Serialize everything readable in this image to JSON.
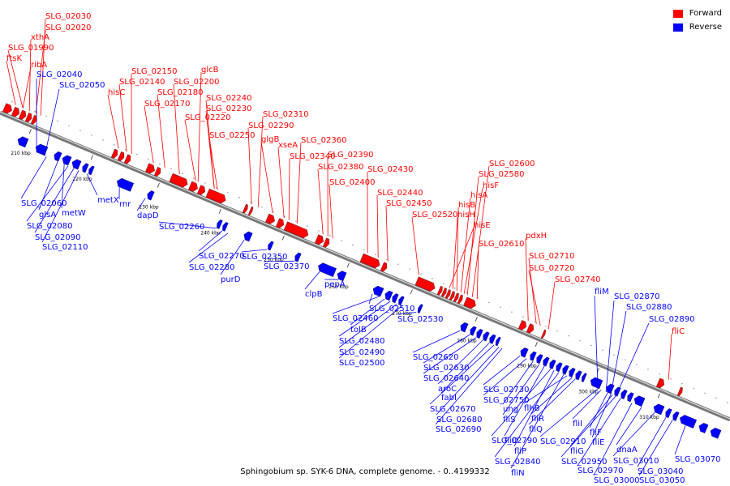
{
  "caption": "Sphingobium sp. SYK-6 DNA, complete genome. - 0..4199332",
  "legend": {
    "forward_label": "Forward",
    "reverse_label": "Reverse",
    "forward_color": "#ff0000",
    "reverse_color": "#0000ff"
  },
  "axis": {
    "line_color": "#888888",
    "ticks": [
      "210 kbp",
      "220 kbp",
      "230 kbp",
      "240 kbp",
      "250 kbp",
      "260 kbp",
      "270 kbp",
      "280 kbp",
      "290 kbp",
      "300 kbp",
      "310 kbp"
    ]
  },
  "forward_labels": [
    "SLG_02030",
    "SLG_02020",
    "xthA",
    "SLG_01990",
    "ftsK",
    "ribA",
    "SLG_02150",
    "SLG_02140",
    "hisC",
    "glcB",
    "SLG_02200",
    "SLG_02180",
    "SLG_02170",
    "SLG_02240",
    "SLG_02230",
    "SLG_02220",
    "SLG_02250",
    "SLG_02310",
    "SLG_02290",
    "glgB",
    "xseA",
    "SLG_02360",
    "SLG_02340",
    "SLG_02390",
    "SLG_02380",
    "SLG_02400",
    "SLG_02430",
    "SLG_02440",
    "SLG_02450",
    "SLG_02520",
    "SLG_02600",
    "SLG_02580",
    "hisF",
    "hisA",
    "hisB",
    "hisH",
    "hisE",
    "SLG_02610",
    "pdxH",
    "SLG_02710",
    "SLG_02720",
    "SLG_02740",
    "fliC"
  ],
  "reverse_labels": [
    "SLG_02040",
    "SLG_02050",
    "SLG_02060",
    "glsA",
    "metW",
    "SLG_02080",
    "SLG_02090",
    "SLG_02110",
    "metX",
    "rnr",
    "dapD",
    "SLG_02260",
    "SLG_02270",
    "SLG_02280",
    "purD",
    "SLG_02350",
    "SLG_02370",
    "clpB",
    "pepA",
    "SLG_02510",
    "SLG_02460",
    "tolB",
    "SLG_02480",
    "SLG_02490",
    "SLG_02500",
    "SLG_02530",
    "SLG_02620",
    "SLG_02630",
    "SLG_02640",
    "aroC",
    "fabI",
    "SLG_02670",
    "SLG_02680",
    "SLG_02690",
    "SLG_02730",
    "SLG_02750",
    "ung",
    "fliS",
    "fliD",
    "SLG_02790",
    "fliP",
    "SLG_02840",
    "fliN",
    "flhB",
    "fliR",
    "fliQ",
    "fliM",
    "SLG_02870",
    "SLG_02880",
    "SLG_02890",
    "SLG_02910",
    "fliI",
    "fliF",
    "fliE",
    "fliG",
    "SLG_02950",
    "SLG_02970",
    "SLG_03000",
    "dnaA",
    "SLG_03010",
    "SLG_03040",
    "SLG_03050",
    "SLG_03070"
  ]
}
